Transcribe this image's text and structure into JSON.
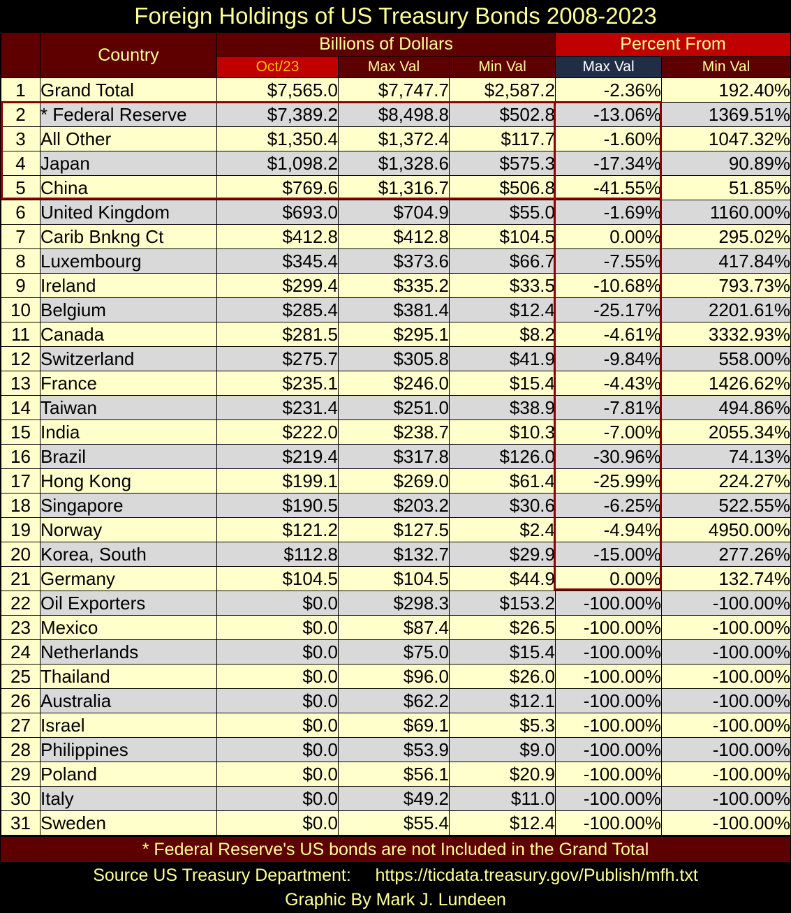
{
  "title": "Foreign Holdings of US Treasury Bonds 2008-2023",
  "colors": {
    "header_maroon": "#5e0000",
    "header_red": "#c00000",
    "header_navy": "#1f2d45",
    "header_text": "#ffff99",
    "header_highlight_text": "#ffc000",
    "row_yellow": "#ffffcc",
    "row_gray": "#d9d9d9",
    "box_outline": "#8b0000"
  },
  "header": {
    "country": "Country",
    "group_dollars": "Billions of Dollars",
    "group_percent": "Percent From",
    "columns": [
      "Oct/23",
      "Max Val",
      "Min Val",
      "Max Val",
      "Min Val"
    ]
  },
  "chart_data": {
    "type": "table",
    "title": "Foreign Holdings of US Treasury Bonds 2008-2023",
    "columns": [
      "#",
      "Country",
      "Oct/23",
      "Max Val",
      "Min Val",
      "Percent From Max Val",
      "Percent From Min Val"
    ],
    "rows": [
      {
        "idx": "1",
        "country": "Grand Total",
        "oct23": "$7,565.0",
        "max": "$7,747.7",
        "min": "$2,587.2",
        "pct_max": "-2.36%",
        "pct_min": "192.40%"
      },
      {
        "idx": "2",
        "country": "* Federal Reserve",
        "oct23": "$7,389.2",
        "max": "$8,498.8",
        "min": "$502.8",
        "pct_max": "-13.06%",
        "pct_min": "1369.51%"
      },
      {
        "idx": "3",
        "country": "All Other",
        "oct23": "$1,350.4",
        "max": "$1,372.4",
        "min": "$117.7",
        "pct_max": "-1.60%",
        "pct_min": "1047.32%"
      },
      {
        "idx": "4",
        "country": "Japan",
        "oct23": "$1,098.2",
        "max": "$1,328.6",
        "min": "$575.3",
        "pct_max": "-17.34%",
        "pct_min": "90.89%"
      },
      {
        "idx": "5",
        "country": "China",
        "oct23": "$769.6",
        "max": "$1,316.7",
        "min": "$506.8",
        "pct_max": "-41.55%",
        "pct_min": "51.85%"
      },
      {
        "idx": "6",
        "country": "United Kingdom",
        "oct23": "$693.0",
        "max": "$704.9",
        "min": "$55.0",
        "pct_max": "-1.69%",
        "pct_min": "1160.00%"
      },
      {
        "idx": "7",
        "country": "Carib Bnkng Ct",
        "oct23": "$412.8",
        "max": "$412.8",
        "min": "$104.5",
        "pct_max": "0.00%",
        "pct_min": "295.02%"
      },
      {
        "idx": "8",
        "country": "Luxembourg",
        "oct23": "$345.4",
        "max": "$373.6",
        "min": "$66.7",
        "pct_max": "-7.55%",
        "pct_min": "417.84%"
      },
      {
        "idx": "9",
        "country": "Ireland",
        "oct23": "$299.4",
        "max": "$335.2",
        "min": "$33.5",
        "pct_max": "-10.68%",
        "pct_min": "793.73%"
      },
      {
        "idx": "10",
        "country": "Belgium",
        "oct23": "$285.4",
        "max": "$381.4",
        "min": "$12.4",
        "pct_max": "-25.17%",
        "pct_min": "2201.61%"
      },
      {
        "idx": "11",
        "country": "Canada",
        "oct23": "$281.5",
        "max": "$295.1",
        "min": "$8.2",
        "pct_max": "-4.61%",
        "pct_min": "3332.93%"
      },
      {
        "idx": "12",
        "country": "Switzerland",
        "oct23": "$275.7",
        "max": "$305.8",
        "min": "$41.9",
        "pct_max": "-9.84%",
        "pct_min": "558.00%"
      },
      {
        "idx": "13",
        "country": "France",
        "oct23": "$235.1",
        "max": "$246.0",
        "min": "$15.4",
        "pct_max": "-4.43%",
        "pct_min": "1426.62%"
      },
      {
        "idx": "14",
        "country": "Taiwan",
        "oct23": "$231.4",
        "max": "$251.0",
        "min": "$38.9",
        "pct_max": "-7.81%",
        "pct_min": "494.86%"
      },
      {
        "idx": "15",
        "country": "India",
        "oct23": "$222.0",
        "max": "$238.7",
        "min": "$10.3",
        "pct_max": "-7.00%",
        "pct_min": "2055.34%"
      },
      {
        "idx": "16",
        "country": "Brazil",
        "oct23": "$219.4",
        "max": "$317.8",
        "min": "$126.0",
        "pct_max": "-30.96%",
        "pct_min": "74.13%"
      },
      {
        "idx": "17",
        "country": "Hong Kong",
        "oct23": "$199.1",
        "max": "$269.0",
        "min": "$61.4",
        "pct_max": "-25.99%",
        "pct_min": "224.27%"
      },
      {
        "idx": "18",
        "country": "Singapore",
        "oct23": "$190.5",
        "max": "$203.2",
        "min": "$30.6",
        "pct_max": "-6.25%",
        "pct_min": "522.55%"
      },
      {
        "idx": "19",
        "country": "Norway",
        "oct23": "$121.2",
        "max": "$127.5",
        "min": "$2.4",
        "pct_max": "-4.94%",
        "pct_min": "4950.00%"
      },
      {
        "idx": "20",
        "country": "Korea, South",
        "oct23": "$112.8",
        "max": "$132.7",
        "min": "$29.9",
        "pct_max": "-15.00%",
        "pct_min": "277.26%"
      },
      {
        "idx": "21",
        "country": "Germany",
        "oct23": "$104.5",
        "max": "$104.5",
        "min": "$44.9",
        "pct_max": "0.00%",
        "pct_min": "132.74%"
      },
      {
        "idx": "22",
        "country": "Oil Exporters",
        "oct23": "$0.0",
        "max": "$298.3",
        "min": "$153.2",
        "pct_max": "-100.00%",
        "pct_min": "-100.00%"
      },
      {
        "idx": "23",
        "country": "Mexico",
        "oct23": "$0.0",
        "max": "$87.4",
        "min": "$26.5",
        "pct_max": "-100.00%",
        "pct_min": "-100.00%"
      },
      {
        "idx": "24",
        "country": "Netherlands",
        "oct23": "$0.0",
        "max": "$75.0",
        "min": "$15.4",
        "pct_max": "-100.00%",
        "pct_min": "-100.00%"
      },
      {
        "idx": "25",
        "country": "Thailand",
        "oct23": "$0.0",
        "max": "$96.0",
        "min": "$26.0",
        "pct_max": "-100.00%",
        "pct_min": "-100.00%"
      },
      {
        "idx": "26",
        "country": "Australia",
        "oct23": "$0.0",
        "max": "$62.2",
        "min": "$12.1",
        "pct_max": "-100.00%",
        "pct_min": "-100.00%"
      },
      {
        "idx": "27",
        "country": "Israel",
        "oct23": "$0.0",
        "max": "$69.1",
        "min": "$5.3",
        "pct_max": "-100.00%",
        "pct_min": "-100.00%"
      },
      {
        "idx": "28",
        "country": "Philippines",
        "oct23": "$0.0",
        "max": "$53.9",
        "min": "$9.0",
        "pct_max": "-100.00%",
        "pct_min": "-100.00%"
      },
      {
        "idx": "29",
        "country": "Poland",
        "oct23": "$0.0",
        "max": "$56.1",
        "min": "$20.9",
        "pct_max": "-100.00%",
        "pct_min": "-100.00%"
      },
      {
        "idx": "30",
        "country": "Italy",
        "oct23": "$0.0",
        "max": "$49.2",
        "min": "$11.0",
        "pct_max": "-100.00%",
        "pct_min": "-100.00%"
      },
      {
        "idx": "31",
        "country": "Sweden",
        "oct23": "$0.0",
        "max": "$55.4",
        "min": "$12.4",
        "pct_max": "-100.00%",
        "pct_min": "-100.00%"
      }
    ]
  },
  "footnote": "* Federal Reserve's US bonds are not Included in the Grand Total",
  "source": "Source US Treasury Department:     https://ticdata.treasury.gov/Publish/mfh.txt",
  "credit": "Graphic By Mark J. Lundeen"
}
